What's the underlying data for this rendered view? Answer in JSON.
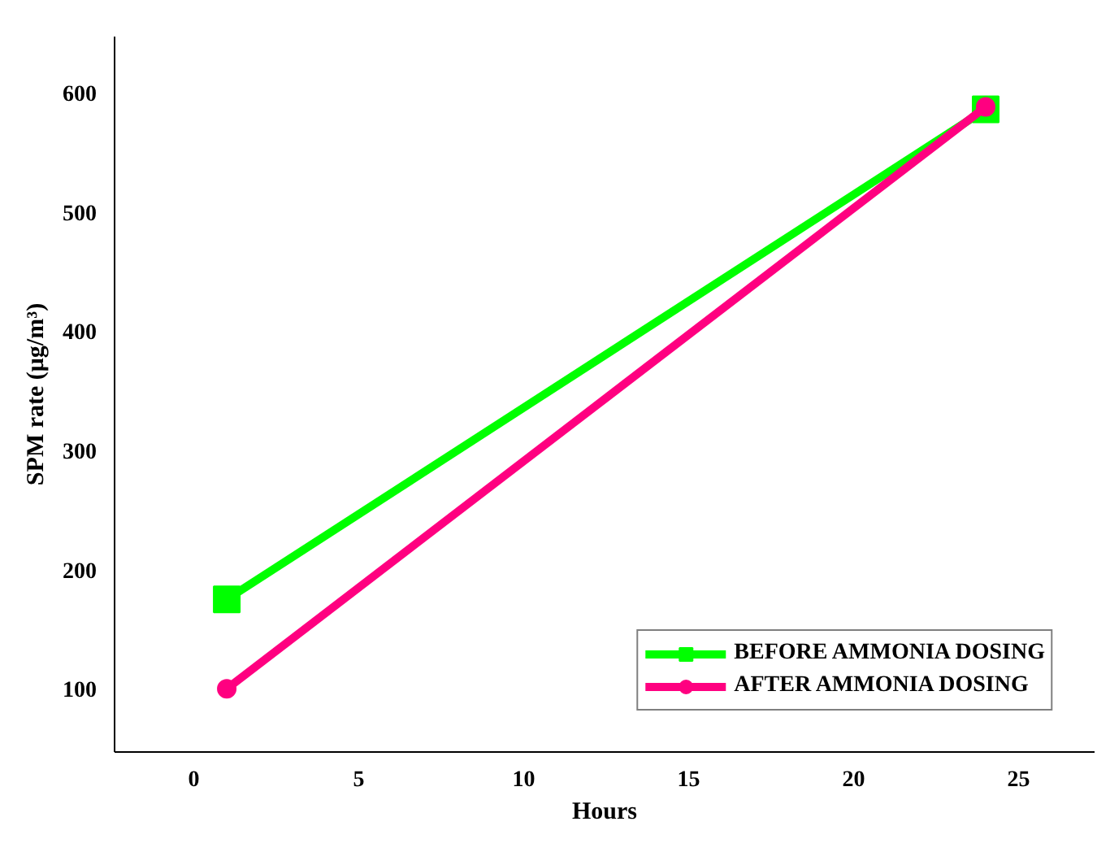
{
  "chart_data": {
    "type": "line",
    "xlabel": "Hours",
    "ylabel": "SPM rate (μg/m³)",
    "xlim": [
      -2.4,
      27.3
    ],
    "ylim": [
      47,
      647
    ],
    "xticks": [
      0,
      5,
      10,
      15,
      20,
      25
    ],
    "yticks": [
      100,
      200,
      300,
      400,
      500,
      600
    ],
    "x": [
      1,
      24
    ],
    "grid": false,
    "legend": "bottom right",
    "line_style": "solid",
    "series": [
      {
        "name": "BEFORE AMMONIA DOSING",
        "color": "#00ff00",
        "marker": "square",
        "values": [
          175,
          586
        ]
      },
      {
        "name": "AFTER AMMONIA DOSING",
        "color": "#ff0080",
        "marker": "circle",
        "values": [
          100,
          588
        ]
      }
    ]
  }
}
